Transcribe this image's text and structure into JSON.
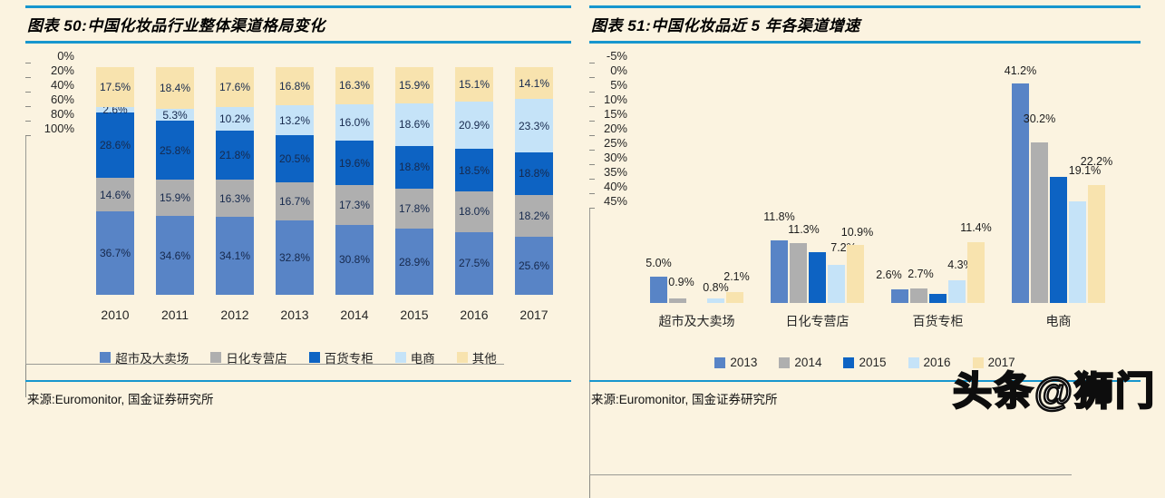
{
  "page": {
    "background": "#FBF3E0",
    "accent_rule_color": "#1796CE",
    "watermark": "头条@狮门"
  },
  "panels": [
    {
      "title": "图表 50:中国化妆品行业整体渠道格局变化",
      "source": "来源:Euromonitor, 国金证券研究所"
    },
    {
      "title": "图表 51:中国化妆品近 5 年各渠道增速",
      "source": "来源:Euromonitor, 国金证券研究所"
    }
  ],
  "chart_data": [
    {
      "type": "bar",
      "subtype": "stacked-100-percent-column",
      "title": "中国化妆品行业整体渠道格局变化",
      "categories": [
        "2010",
        "2011",
        "2012",
        "2013",
        "2014",
        "2015",
        "2016",
        "2017"
      ],
      "series": [
        {
          "name": "超市及大卖场",
          "color": "#5884C6",
          "values": [
            36.7,
            34.6,
            34.1,
            32.8,
            30.8,
            28.9,
            27.5,
            25.6
          ]
        },
        {
          "name": "日化专营店",
          "color": "#AFAFAF",
          "values": [
            14.6,
            15.9,
            16.3,
            16.7,
            17.3,
            17.8,
            18.0,
            18.2
          ]
        },
        {
          "name": "百货专柜",
          "color": "#0D63C3",
          "values": [
            28.6,
            25.8,
            21.8,
            20.5,
            19.6,
            18.8,
            18.5,
            18.8
          ]
        },
        {
          "name": "电商",
          "color": "#C5E3F8",
          "values": [
            2.6,
            5.3,
            10.2,
            13.2,
            16.0,
            18.6,
            20.9,
            23.3
          ]
        },
        {
          "name": "其他",
          "color": "#F8E3AE",
          "values": [
            17.5,
            18.4,
            17.6,
            16.8,
            16.3,
            15.9,
            15.1,
            14.1
          ]
        }
      ],
      "yticks": [
        0,
        20,
        40,
        60,
        80,
        100
      ],
      "ylim": [
        0,
        100
      ],
      "grid": false,
      "legend_position": "bottom",
      "data_labels": "inside-center, one per segment, formatted 0.0%"
    },
    {
      "type": "bar",
      "subtype": "grouped-column",
      "title": "中国化妆品近5年各渠道增速",
      "categories": [
        "超市及大卖场",
        "日化专营店",
        "百货专柜",
        "电商"
      ],
      "series": [
        {
          "name": "2013",
          "color": "#5884C6",
          "values": [
            5.0,
            11.8,
            2.6,
            41.2
          ],
          "labels": [
            "5.0%",
            "11.8%",
            "2.6%",
            "41.2%"
          ],
          "label_offsets": [
            [
              0,
              -5
            ],
            [
              0,
              -16
            ],
            [
              -12,
              -6
            ],
            [
              0,
              -4
            ]
          ]
        },
        {
          "name": "2014",
          "color": "#AFAFAF",
          "values": [
            0.9,
            11.3,
            2.7,
            30.2
          ],
          "labels": [
            "0.9%",
            "11.3%",
            "2.7%",
            "30.2%"
          ],
          "label_offsets": [
            [
              4,
              -8
            ],
            [
              6,
              -5
            ],
            [
              2,
              -6
            ],
            [
              0,
              -16
            ]
          ]
        },
        {
          "name": "2015",
          "color": "#0D63C3",
          "values": [
            0.0,
            9.5,
            1.7,
            23.7
          ],
          "labels": [
            null,
            null,
            null,
            null
          ],
          "label_offsets": [
            [
              0,
              0
            ],
            [
              0,
              0
            ],
            [
              0,
              0
            ],
            [
              0,
              0
            ]
          ]
        },
        {
          "name": "2016",
          "color": "#C5E3F8",
          "values": [
            0.8,
            7.2,
            4.3,
            19.1
          ],
          "labels": [
            "0.8%",
            "7.2%",
            "4.3%",
            "19.1%"
          ],
          "label_offsets": [
            [
              0,
              -2
            ],
            [
              8,
              -9
            ],
            [
              4,
              -7
            ],
            [
              8,
              -24
            ]
          ]
        },
        {
          "name": "2017",
          "color": "#F8E3AE",
          "values": [
            2.1,
            10.9,
            11.4,
            22.2
          ],
          "labels": [
            "2.1%",
            "10.9%",
            "11.4%",
            "22.2%"
          ],
          "label_offsets": [
            [
              2,
              -7
            ],
            [
              2,
              -4
            ],
            [
              0,
              -6
            ],
            [
              0,
              -16
            ]
          ]
        }
      ],
      "yticks": [
        -5,
        0,
        5,
        10,
        15,
        20,
        25,
        30,
        35,
        40,
        45
      ],
      "ylim": [
        -5,
        45
      ],
      "grid": false,
      "legend_position": "bottom"
    }
  ]
}
